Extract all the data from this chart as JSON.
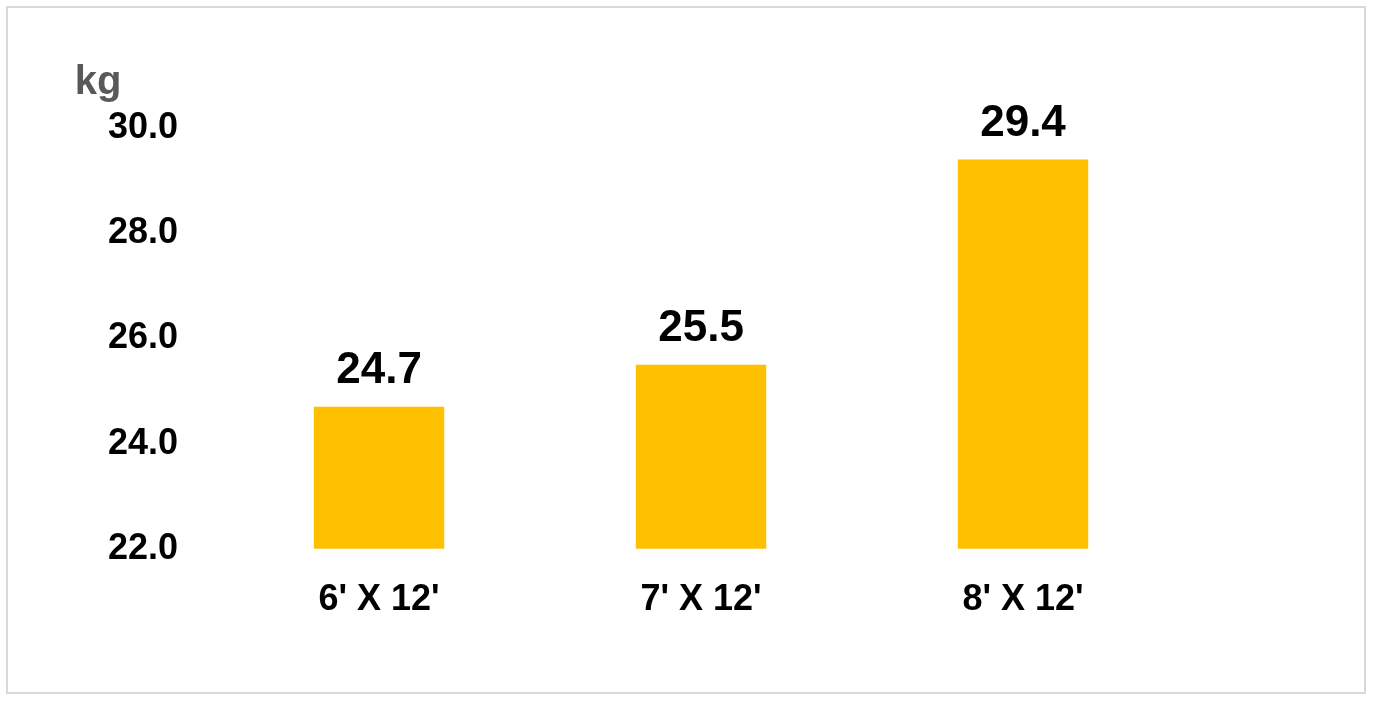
{
  "chart_data": {
    "type": "bar",
    "ylabel": "kg",
    "categories": [
      "6' X 12'",
      "7' X 12'",
      "8' X 12'"
    ],
    "values": [
      24.7,
      25.5,
      29.4
    ],
    "color": "#ffc000",
    "ylim": [
      22,
      30
    ],
    "yticks": [
      {
        "value": 22,
        "label": "22.0"
      },
      {
        "value": 24,
        "label": "24.0"
      },
      {
        "value": 26,
        "label": "26.0"
      },
      {
        "value": 28,
        "label": "28.0"
      },
      {
        "value": 30,
        "label": "30.0"
      }
    ],
    "grid": false,
    "legend": false,
    "data_labels": true
  }
}
